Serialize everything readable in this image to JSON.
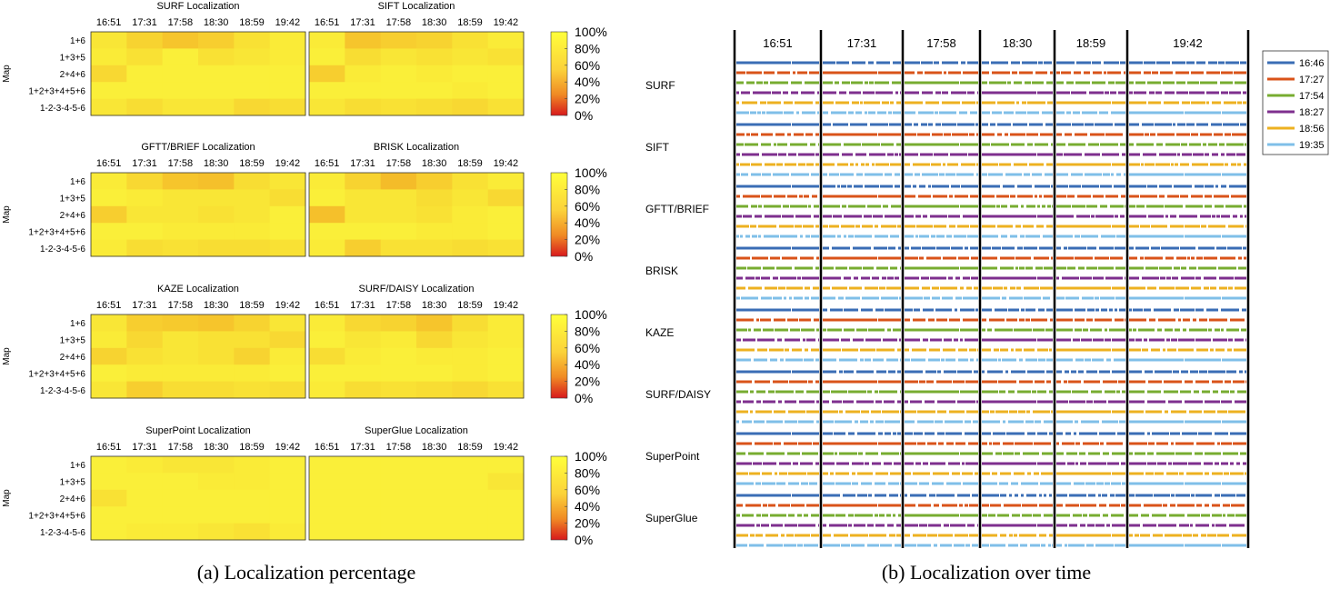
{
  "colors": {
    "colorbar_top": "#ffff3a",
    "colorbar_mid": "#f5a623",
    "colorbar_bottom": "#d7191c",
    "heat_base": "#fbf23a",
    "legend_16_46": "#3a6db5",
    "legend_17_27": "#d95319",
    "legend_17_54": "#77ac30",
    "legend_18_27": "#7e2f8e",
    "legend_18_56": "#edb120",
    "legend_19_35": "#7fbfe8"
  },
  "panel_a": {
    "caption": "(a) Localization percentage",
    "ylabel": "Map",
    "columns": [
      "16:51",
      "17:31",
      "17:58",
      "18:30",
      "18:59",
      "19:42"
    ],
    "rows": [
      "1+6",
      "1+3+5",
      "2+4+6",
      "1+2+3+4+5+6",
      "1-2-3-4-5-6"
    ],
    "colorbar_ticks": [
      "100%",
      "80%",
      "60%",
      "40%",
      "20%",
      "0%"
    ]
  },
  "panel_b": {
    "caption": "(b) Localization over time",
    "time_labels": [
      "16:51",
      "17:31",
      "17:58",
      "18:30",
      "18:59",
      "19:42"
    ],
    "methods": [
      "SURF",
      "SIFT",
      "GFTT/BRIEF",
      "BRISK",
      "KAZE",
      "SURF/DAISY",
      "SuperPoint",
      "SuperGlue"
    ],
    "legend": [
      "16:46",
      "17:27",
      "17:54",
      "18:27",
      "18:56",
      "19:35"
    ]
  },
  "chart_data": [
    {
      "type": "heatmap",
      "title": "SURF Localization",
      "x": [
        "16:51",
        "17:31",
        "17:58",
        "18:30",
        "18:59",
        "19:42"
      ],
      "y": [
        "1+6",
        "1+3+5",
        "2+4+6",
        "1+2+3+4+5+6",
        "1-2-3-4-5-6"
      ],
      "ylabel": "Map",
      "colorbar": [
        0,
        100
      ],
      "values": [
        [
          97,
          93,
          90,
          92,
          96,
          98
        ],
        [
          98,
          96,
          99,
          96,
          97,
          98
        ],
        [
          94,
          99,
          99,
          99,
          99,
          99
        ],
        [
          99,
          99,
          99,
          99,
          99,
          99
        ],
        [
          97,
          95,
          97,
          97,
          94,
          95
        ]
      ]
    },
    {
      "type": "heatmap",
      "title": "SIFT Localization",
      "x": [
        "16:51",
        "17:31",
        "17:58",
        "18:30",
        "18:59",
        "19:42"
      ],
      "y": [
        "1+6",
        "1+3+5",
        "2+4+6",
        "1+2+3+4+5+6",
        "1-2-3-4-5-6"
      ],
      "ylabel": "Map",
      "colorbar": [
        0,
        100
      ],
      "values": [
        [
          98,
          90,
          92,
          93,
          96,
          98
        ],
        [
          99,
          95,
          97,
          96,
          97,
          96
        ],
        [
          92,
          98,
          99,
          98,
          99,
          99
        ],
        [
          99,
          99,
          99,
          99,
          98,
          99
        ],
        [
          97,
          95,
          96,
          95,
          94,
          96
        ]
      ]
    },
    {
      "type": "heatmap",
      "title": "GFTT/BRIEF Localization",
      "x": [
        "16:51",
        "17:31",
        "17:58",
        "18:30",
        "18:59",
        "19:42"
      ],
      "y": [
        "1+6",
        "1+3+5",
        "2+4+6",
        "1+2+3+4+5+6",
        "1-2-3-4-5-6"
      ],
      "ylabel": "Map",
      "colorbar": [
        0,
        100
      ],
      "values": [
        [
          98,
          94,
          90,
          89,
          95,
          97
        ],
        [
          99,
          98,
          97,
          97,
          97,
          95
        ],
        [
          92,
          97,
          97,
          96,
          97,
          99
        ],
        [
          99,
          99,
          98,
          98,
          98,
          99
        ],
        [
          98,
          95,
          96,
          95,
          95,
          96
        ]
      ]
    },
    {
      "type": "heatmap",
      "title": "BRISK Localization",
      "x": [
        "16:51",
        "17:31",
        "17:58",
        "18:30",
        "18:59",
        "19:42"
      ],
      "y": [
        "1+6",
        "1+3+5",
        "2+4+6",
        "1+2+3+4+5+6",
        "1-2-3-4-5-6"
      ],
      "ylabel": "Map",
      "colorbar": [
        0,
        100
      ],
      "values": [
        [
          98,
          93,
          88,
          92,
          96,
          98
        ],
        [
          99,
          97,
          97,
          95,
          97,
          94
        ],
        [
          89,
          97,
          97,
          96,
          98,
          99
        ],
        [
          99,
          99,
          99,
          98,
          98,
          99
        ],
        [
          98,
          92,
          96,
          96,
          95,
          96
        ]
      ]
    },
    {
      "type": "heatmap",
      "title": "KAZE Localization",
      "x": [
        "16:51",
        "17:31",
        "17:58",
        "18:30",
        "18:59",
        "19:42"
      ],
      "y": [
        "1+6",
        "1+3+5",
        "2+4+6",
        "1+2+3+4+5+6",
        "1-2-3-4-5-6"
      ],
      "ylabel": "Map",
      "colorbar": [
        0,
        100
      ],
      "values": [
        [
          97,
          92,
          91,
          90,
          93,
          97
        ],
        [
          98,
          94,
          97,
          96,
          96,
          94
        ],
        [
          93,
          96,
          97,
          96,
          93,
          98
        ],
        [
          99,
          98,
          98,
          98,
          98,
          99
        ],
        [
          97,
          92,
          95,
          95,
          96,
          95
        ]
      ]
    },
    {
      "type": "heatmap",
      "title": "SURF/DAISY Localization",
      "x": [
        "16:51",
        "17:31",
        "17:58",
        "18:30",
        "18:59",
        "19:42"
      ],
      "y": [
        "1+6",
        "1+3+5",
        "2+4+6",
        "1+2+3+4+5+6",
        "1-2-3-4-5-6"
      ],
      "ylabel": "Map",
      "colorbar": [
        0,
        100
      ],
      "values": [
        [
          98,
          94,
          93,
          90,
          95,
          98
        ],
        [
          99,
          97,
          98,
          94,
          97,
          98
        ],
        [
          95,
          98,
          99,
          98,
          98,
          99
        ],
        [
          99,
          99,
          99,
          99,
          98,
          99
        ],
        [
          98,
          95,
          96,
          95,
          94,
          96
        ]
      ]
    },
    {
      "type": "heatmap",
      "title": "SuperPoint Localization",
      "x": [
        "16:51",
        "17:31",
        "17:58",
        "18:30",
        "18:59",
        "19:42"
      ],
      "y": [
        "1+6",
        "1+3+5",
        "2+4+6",
        "1+2+3+4+5+6",
        "1-2-3-4-5-6"
      ],
      "ylabel": "Map",
      "colorbar": [
        0,
        100
      ],
      "values": [
        [
          99,
          98,
          97,
          97,
          98,
          99
        ],
        [
          99,
          99,
          99,
          98,
          98,
          99
        ],
        [
          96,
          99,
          99,
          99,
          99,
          99
        ],
        [
          99,
          99,
          99,
          99,
          99,
          99
        ],
        [
          99,
          98,
          98,
          97,
          96,
          98
        ]
      ]
    },
    {
      "type": "heatmap",
      "title": "SuperGlue Localization",
      "x": [
        "16:51",
        "17:31",
        "17:58",
        "18:30",
        "18:59",
        "19:42"
      ],
      "y": [
        "1+6",
        "1+3+5",
        "2+4+6",
        "1+2+3+4+5+6",
        "1-2-3-4-5-6"
      ],
      "ylabel": "Map",
      "colorbar": [
        0,
        100
      ],
      "values": [
        [
          99,
          99,
          99,
          99,
          99,
          99
        ],
        [
          99,
          99,
          99,
          99,
          99,
          97
        ],
        [
          99,
          99,
          99,
          99,
          99,
          99
        ],
        [
          99,
          99,
          99,
          99,
          99,
          99
        ],
        [
          99,
          99,
          99,
          99,
          99,
          99
        ]
      ]
    }
  ]
}
